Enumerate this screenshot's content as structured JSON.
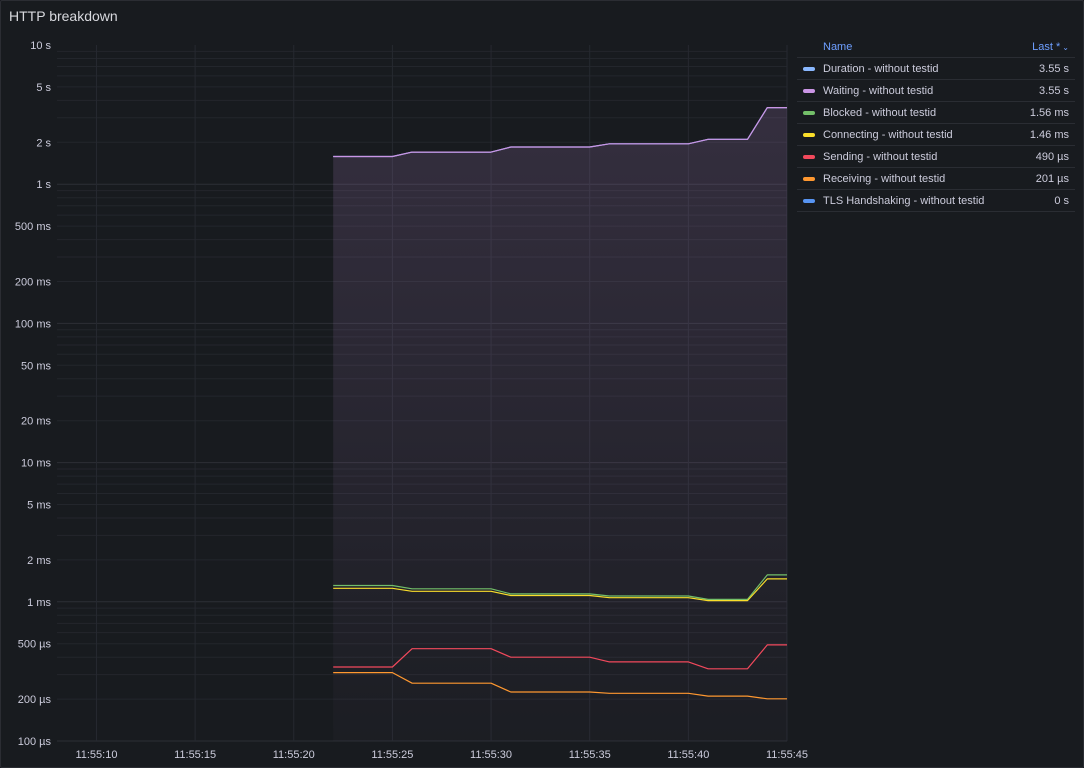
{
  "panel": {
    "title": "HTTP breakdown"
  },
  "legend": {
    "name_header": "Name",
    "last_header": "Last *",
    "sort_icon": "chevron-down-icon",
    "items": [
      {
        "name": "Duration - without testid",
        "value": "3.55 s",
        "color": "#8ab8ff"
      },
      {
        "name": "Waiting - without testid",
        "value": "3.55 s",
        "color": "#ca95e5"
      },
      {
        "name": "Blocked - without testid",
        "value": "1.56 ms",
        "color": "#73bf69"
      },
      {
        "name": "Connecting - without testid",
        "value": "1.46 ms",
        "color": "#fade2a"
      },
      {
        "name": "Sending - without testid",
        "value": "490 µs",
        "color": "#f2495c"
      },
      {
        "name": "Receiving - without testid",
        "value": "201 µs",
        "color": "#ff9830"
      },
      {
        "name": "TLS Handshaking - without testid",
        "value": "0 s",
        "color": "#5794f2"
      }
    ]
  },
  "chart_data": {
    "type": "line",
    "scale": "log",
    "y_unit": "s",
    "ylim": [
      0.0001,
      10
    ],
    "y_ticks": [
      {
        "v": 10,
        "label": "10 s"
      },
      {
        "v": 5,
        "label": "5 s"
      },
      {
        "v": 2,
        "label": "2 s"
      },
      {
        "v": 1,
        "label": "1 s"
      },
      {
        "v": 0.5,
        "label": "500 ms"
      },
      {
        "v": 0.2,
        "label": "200 ms"
      },
      {
        "v": 0.1,
        "label": "100 ms"
      },
      {
        "v": 0.05,
        "label": "50 ms"
      },
      {
        "v": 0.02,
        "label": "20 ms"
      },
      {
        "v": 0.01,
        "label": "10 ms"
      },
      {
        "v": 0.005,
        "label": "5 ms"
      },
      {
        "v": 0.002,
        "label": "2 ms"
      },
      {
        "v": 0.001,
        "label": "1 ms"
      },
      {
        "v": 0.0005,
        "label": "500 µs"
      },
      {
        "v": 0.0002,
        "label": "200 µs"
      },
      {
        "v": 0.0001,
        "label": "100 µs"
      }
    ],
    "x_range": [
      "11:55:08",
      "11:55:45"
    ],
    "x_ticks": [
      "11:55:10",
      "11:55:15",
      "11:55:20",
      "11:55:25",
      "11:55:30",
      "11:55:35",
      "11:55:40",
      "11:55:45"
    ],
    "x": [
      "11:55:22",
      "11:55:25",
      "11:55:26",
      "11:55:30",
      "11:55:31",
      "11:55:35",
      "11:55:36",
      "11:55:40",
      "11:55:41",
      "11:55:43",
      "11:55:44",
      "11:55:45"
    ],
    "series": [
      {
        "name": "Duration - without testid",
        "color": "#8ab8ff",
        "values": [
          1.58,
          1.58,
          1.7,
          1.7,
          1.85,
          1.85,
          1.95,
          1.95,
          2.1,
          2.1,
          3.55,
          3.55
        ]
      },
      {
        "name": "Waiting - without testid",
        "color": "#ca95e5",
        "fill": true,
        "values": [
          1.58,
          1.58,
          1.7,
          1.7,
          1.85,
          1.85,
          1.95,
          1.95,
          2.1,
          2.1,
          3.55,
          3.55
        ]
      },
      {
        "name": "Blocked - without testid",
        "color": "#73bf69",
        "values": [
          0.00131,
          0.00131,
          0.00124,
          0.00124,
          0.00114,
          0.00114,
          0.0011,
          0.0011,
          0.00104,
          0.00104,
          0.00156,
          0.00156
        ]
      },
      {
        "name": "Connecting - without testid",
        "color": "#fade2a",
        "values": [
          0.00125,
          0.00125,
          0.00119,
          0.00119,
          0.00111,
          0.00111,
          0.00107,
          0.00107,
          0.00102,
          0.00102,
          0.00146,
          0.00146
        ]
      },
      {
        "name": "Sending - without testid",
        "color": "#f2495c",
        "values": [
          0.00034,
          0.00034,
          0.00046,
          0.00046,
          0.0004,
          0.0004,
          0.00037,
          0.00037,
          0.00033,
          0.00033,
          0.00049,
          0.00049
        ]
      },
      {
        "name": "Receiving - without testid",
        "color": "#ff9830",
        "values": [
          0.00031,
          0.00031,
          0.00026,
          0.00026,
          0.000225,
          0.000225,
          0.00022,
          0.00022,
          0.00021,
          0.00021,
          0.000201,
          0.000201
        ]
      }
    ]
  }
}
